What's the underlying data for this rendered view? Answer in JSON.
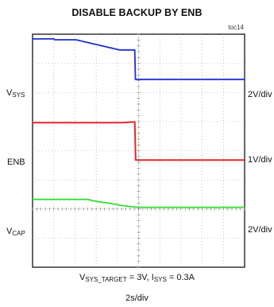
{
  "title": "DISABLE BACKUP BY ENB",
  "figure_tag": "toc14",
  "channels": [
    {
      "name_main": "V",
      "name_sub": "SYS",
      "scale": "2V/div",
      "color": "#1f2fcf"
    },
    {
      "name_main": "ENB",
      "name_sub": "",
      "scale": "1V/div",
      "color": "#e0282b"
    },
    {
      "name_main": "V",
      "name_sub": "CAP",
      "scale": "2V/div",
      "color": "#33dd33"
    }
  ],
  "caption": {
    "p1": "V",
    "p1_sub": "SYS_TARGET",
    "p2": " = 3V, I",
    "p2_sub": "SYS",
    "p3": " = 0.3A"
  },
  "timebase": "2s/div",
  "chart_data": {
    "type": "line",
    "title": "DISABLE BACKUP BY ENB",
    "x_unit_per_div": "2s/div",
    "x_divisions": 10,
    "y_divisions": 8,
    "xlim": [
      0,
      10
    ],
    "ylim": [
      0,
      8
    ],
    "grid": true,
    "series": [
      {
        "name": "VSYS",
        "color": "#1f2fcf",
        "x": [
          0,
          1.0,
          1.05,
          2.05,
          4.1,
          4.12,
          4.82,
          4.85,
          10
        ],
        "y": [
          7.84,
          7.84,
          7.81,
          7.81,
          7.46,
          7.46,
          7.46,
          6.45,
          6.45
        ]
      },
      {
        "name": "ENB",
        "color": "#e0282b",
        "x": [
          0,
          4.2,
          4.82,
          4.86,
          10
        ],
        "y": [
          4.96,
          4.96,
          4.99,
          3.68,
          3.68
        ]
      },
      {
        "name": "VCAP",
        "color": "#33dd33",
        "x": [
          0,
          2.6,
          3.0,
          3.6,
          4.2,
          4.9,
          10
        ],
        "y": [
          2.33,
          2.33,
          2.26,
          2.2,
          2.12,
          2.06,
          2.06
        ]
      }
    ]
  }
}
